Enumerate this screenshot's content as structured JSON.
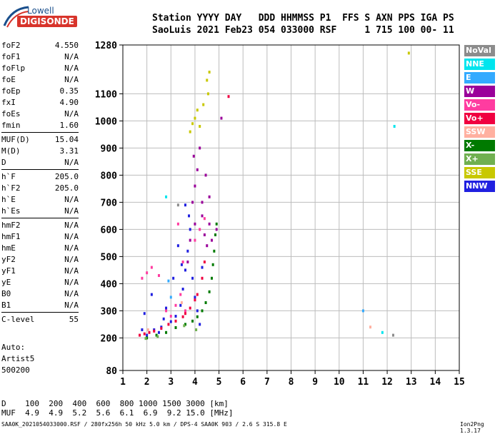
{
  "logo": {
    "brand": "Lowell",
    "product": "DIGISONDE"
  },
  "header": {
    "line1": "Station YYYY DAY   DDD HHMMSS P1  FFS S AXN PPS IGA PS",
    "line2": "SaoLuis 2021 Feb23 054 033000 RSF     1 715 100 00- 11"
  },
  "params_groups": [
    [
      [
        "foF2",
        "4.550"
      ],
      [
        "foF1",
        "N/A"
      ],
      [
        "foFlp",
        "N/A"
      ],
      [
        "foE",
        "N/A"
      ],
      [
        "foEp",
        "0.35"
      ],
      [
        "fxI",
        "4.90"
      ],
      [
        "foEs",
        "N/A"
      ],
      [
        "fmin",
        "1.60"
      ]
    ],
    [
      [
        "MUF(D)",
        "15.04"
      ],
      [
        "M(D)",
        "3.31"
      ],
      [
        "D",
        "N/A"
      ]
    ],
    [
      [
        "h`F",
        "205.0"
      ],
      [
        "h`F2",
        "205.0"
      ],
      [
        "h`E",
        "N/A"
      ],
      [
        "h`Es",
        "N/A"
      ]
    ],
    [
      [
        "hmF2",
        "N/A"
      ],
      [
        "hmF1",
        "N/A"
      ],
      [
        "hmE",
        "N/A"
      ],
      [
        "yF2",
        "N/A"
      ],
      [
        "yF1",
        "N/A"
      ],
      [
        "yE",
        "N/A"
      ],
      [
        "B0",
        "N/A"
      ],
      [
        "B1",
        "N/A"
      ]
    ],
    [
      [
        "C-level",
        "55"
      ]
    ]
  ],
  "auto": {
    "line1": "Auto:",
    "line2": "Artist5",
    "line3": "500200"
  },
  "legend": [
    {
      "label": "NoVal",
      "color": "#8c8c8c"
    },
    {
      "label": "NNE",
      "color": "#00e5ee"
    },
    {
      "label": "E",
      "color": "#33aaff"
    },
    {
      "label": "W",
      "color": "#9a009a"
    },
    {
      "label": "Vo-",
      "color": "#ff3ca0"
    },
    {
      "label": "Vo+",
      "color": "#f00040"
    },
    {
      "label": "SSW",
      "color": "#ffb0a0"
    },
    {
      "label": "X-",
      "color": "#007a00"
    },
    {
      "label": "X+",
      "color": "#70b050"
    },
    {
      "label": "SSE",
      "color": "#c8c800"
    },
    {
      "label": "NNW",
      "color": "#2020e0"
    }
  ],
  "footer": {
    "line1": "D    100  200  400  600  800 1000 1500 3000 [km]",
    "line2": "MUF  4.9  4.9  5.2  5.6  6.1  6.9  9.2 15.0 [MHz]",
    "filename": "SAA0K_2021054033000.RSF / 280fx256h 50 kHz 5.0 km / DPS-4 SAA0K 903 / 2.6 S 315.8 E",
    "version": "Ion2Png 1.3.17"
  },
  "chart_data": {
    "type": "scatter",
    "xlim": [
      1,
      15
    ],
    "ylim": [
      80,
      1280
    ],
    "xticks": [
      "1",
      "2",
      "3",
      "4",
      "5",
      "6",
      "7",
      "8",
      "9",
      "10",
      "11",
      "12",
      "13",
      "14",
      "15"
    ],
    "yticks": [
      {
        "v": 80,
        "label": "80"
      },
      {
        "v": 200,
        "label": "200"
      },
      {
        "v": 300,
        "label": "300"
      },
      {
        "v": 400,
        "label": "400"
      },
      {
        "v": 500,
        "label": "500"
      },
      {
        "v": 600,
        "label": "600"
      },
      {
        "v": 700,
        "label": "700"
      },
      {
        "v": 800,
        "label": "800"
      },
      {
        "v": 900,
        "label": "900"
      },
      {
        "v": 1000,
        "label": "1000"
      },
      {
        "v": 1100,
        "label": "1100"
      },
      {
        "v": 1280,
        "label": "1280"
      }
    ],
    "grid": true,
    "legend_position": "right",
    "series": [
      {
        "color": "#2020e0",
        "points": [
          [
            2.0,
            210
          ],
          [
            2.3,
            230
          ],
          [
            2.6,
            240
          ],
          [
            3.0,
            260
          ],
          [
            3.2,
            280
          ],
          [
            3.4,
            320
          ],
          [
            3.5,
            380
          ],
          [
            3.6,
            450
          ],
          [
            3.7,
            520
          ],
          [
            3.8,
            600
          ],
          [
            3.9,
            420
          ],
          [
            4.0,
            350
          ],
          [
            4.1,
            300
          ],
          [
            4.2,
            250
          ],
          [
            1.9,
            290
          ],
          [
            2.2,
            360
          ],
          [
            2.8,
            310
          ],
          [
            3.3,
            540
          ],
          [
            3.6,
            690
          ],
          [
            4.3,
            460
          ],
          [
            2.5,
            220
          ],
          [
            3.1,
            420
          ],
          [
            3.75,
            650
          ],
          [
            1.8,
            230
          ],
          [
            2.7,
            270
          ],
          [
            3.45,
            470
          ]
        ]
      },
      {
        "color": "#9a009a",
        "points": [
          [
            3.9,
            700
          ],
          [
            4.0,
            760
          ],
          [
            4.1,
            820
          ],
          [
            4.2,
            900
          ],
          [
            4.3,
            650
          ],
          [
            4.4,
            580
          ],
          [
            4.5,
            540
          ],
          [
            4.6,
            620
          ],
          [
            4.7,
            560
          ],
          [
            4.3,
            700
          ],
          [
            4.0,
            620
          ],
          [
            3.8,
            560
          ],
          [
            3.7,
            480
          ],
          [
            4.6,
            720
          ],
          [
            4.9,
            600
          ],
          [
            5.1,
            1010
          ],
          [
            4.45,
            800
          ],
          [
            3.95,
            870
          ]
        ]
      },
      {
        "color": "#ff3ca0",
        "points": [
          [
            1.8,
            420
          ],
          [
            2.0,
            440
          ],
          [
            2.2,
            460
          ],
          [
            2.5,
            430
          ],
          [
            2.8,
            300
          ],
          [
            3.0,
            280
          ],
          [
            3.2,
            320
          ],
          [
            3.4,
            360
          ],
          [
            3.6,
            300
          ],
          [
            4.0,
            560
          ],
          [
            4.2,
            600
          ],
          [
            4.4,
            640
          ],
          [
            3.3,
            620
          ],
          [
            3.5,
            480
          ]
        ]
      },
      {
        "color": "#f00040",
        "points": [
          [
            1.7,
            210
          ],
          [
            1.9,
            215
          ],
          [
            2.1,
            220
          ],
          [
            2.3,
            225
          ],
          [
            2.6,
            235
          ],
          [
            2.9,
            250
          ],
          [
            3.2,
            262
          ],
          [
            3.5,
            278
          ],
          [
            3.8,
            310
          ],
          [
            4.1,
            360
          ],
          [
            4.3,
            420
          ],
          [
            4.4,
            480
          ],
          [
            4.0,
            340
          ],
          [
            3.6,
            290
          ],
          [
            5.4,
            1090
          ]
        ]
      },
      {
        "color": "#007a00",
        "points": [
          [
            2.0,
            200
          ],
          [
            2.4,
            210
          ],
          [
            2.8,
            220
          ],
          [
            3.2,
            238
          ],
          [
            3.6,
            250
          ],
          [
            3.9,
            262
          ],
          [
            4.1,
            278
          ],
          [
            4.3,
            300
          ],
          [
            4.45,
            330
          ],
          [
            4.6,
            370
          ],
          [
            4.7,
            420
          ],
          [
            4.75,
            470
          ],
          [
            4.8,
            520
          ],
          [
            4.85,
            580
          ],
          [
            4.9,
            620
          ]
        ]
      },
      {
        "color": "#c8c800",
        "points": [
          [
            3.8,
            960
          ],
          [
            3.9,
            990
          ],
          [
            4.0,
            1010
          ],
          [
            4.1,
            1040
          ],
          [
            4.2,
            980
          ],
          [
            4.5,
            1150
          ],
          [
            4.6,
            1180
          ],
          [
            4.55,
            1100
          ],
          [
            4.35,
            1060
          ],
          [
            12.9,
            1250
          ]
        ]
      },
      {
        "color": "#00e5ee",
        "points": [
          [
            2.8,
            720
          ],
          [
            12.3,
            980
          ],
          [
            11.8,
            220
          ]
        ]
      },
      {
        "color": "#33aaff",
        "points": [
          [
            11.0,
            300
          ],
          [
            3.0,
            350
          ],
          [
            2.9,
            410
          ]
        ]
      },
      {
        "color": "#8c8c8c",
        "points": [
          [
            3.3,
            690
          ],
          [
            12.25,
            210
          ]
        ]
      },
      {
        "color": "#70b050",
        "points": [
          [
            4.05,
            230
          ],
          [
            3.55,
            245
          ],
          [
            2.45,
            205
          ],
          [
            1.95,
            198
          ]
        ]
      },
      {
        "color": "#ffb0a0",
        "points": [
          [
            3.45,
            330
          ],
          [
            2.05,
            230
          ],
          [
            11.3,
            240
          ]
        ]
      }
    ]
  }
}
